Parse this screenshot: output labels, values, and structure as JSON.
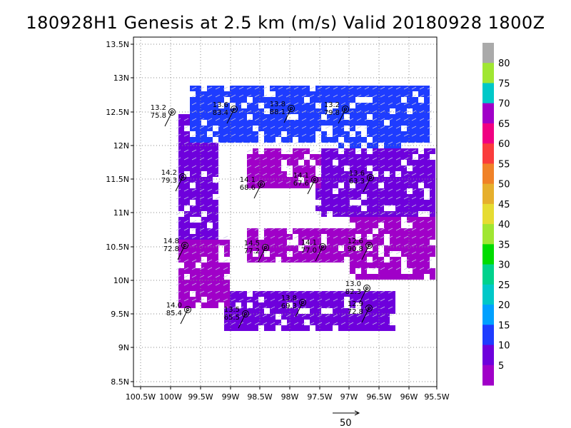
{
  "title": "180928H1 Genesis at 2.5 km (m/s) Valid 20180928 1800Z",
  "lat_ticks": [
    "13.5N",
    "13N",
    "12.5N",
    "12N",
    "11.5N",
    "11N",
    "10.5N",
    "10N",
    "9.5N",
    "9N",
    "8.5N"
  ],
  "lon_ticks": [
    "100.5W",
    "100W",
    "99.5W",
    "99W",
    "98.5W",
    "98W",
    "97.5W",
    "97W",
    "96.5W",
    "96W",
    "95.5W"
  ],
  "colorbar": {
    "labels": [
      "5",
      "10",
      "15",
      "20",
      "25",
      "30",
      "35",
      "40",
      "45",
      "50",
      "55",
      "60",
      "65",
      "70",
      "75",
      "80"
    ],
    "colors": [
      "#a000c8",
      "#6e00dc",
      "#1e3cff",
      "#00a0ff",
      "#00c8c8",
      "#00d28c",
      "#00dc00",
      "#a0e632",
      "#e6dc32",
      "#e6af2d",
      "#f08228",
      "#fa3c3c",
      "#f00082",
      "#a000c8",
      "#00c8c8",
      "#a0e632",
      "#aaaaaa"
    ]
  },
  "scale_vector": {
    "label": "50"
  },
  "observations": [
    {
      "line1": "13.2",
      "line2": "75.8"
    },
    {
      "line1": "13.6",
      "line2": "83.4"
    },
    {
      "line1": "13.8",
      "line2": "88.1"
    },
    {
      "line1": "13.2",
      "line2": "79.8"
    },
    {
      "line1": "14.2",
      "line2": "79.3"
    },
    {
      "line1": "14.1",
      "line2": "68.6"
    },
    {
      "line1": "14.1",
      "line2": "67.6"
    },
    {
      "line1": "13.6",
      "line2": "63.3"
    },
    {
      "line1": "14.8",
      "line2": "72.8"
    },
    {
      "line1": "14.5",
      "line2": "77.2"
    },
    {
      "line1": "14.1",
      "line2": "77.0"
    },
    {
      "line1": "12.6",
      "line2": "90.8"
    },
    {
      "line1": "13.0",
      "line2": "82.3"
    },
    {
      "line1": "14.0",
      "line2": "85.4"
    },
    {
      "line1": "13.8",
      "line2": "69.3"
    },
    {
      "line1": "13.5",
      "line2": "65.5"
    },
    {
      "line1": "12.9",
      "line2": "72.8"
    }
  ]
}
